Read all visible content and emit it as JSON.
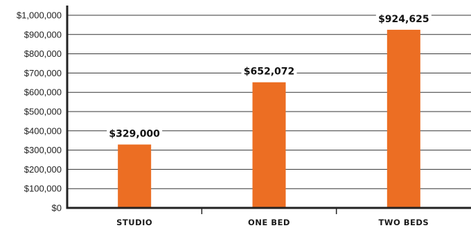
{
  "chart_data": {
    "type": "bar",
    "categories": [
      "STUDIO",
      "ONE BED",
      "TWO BEDS"
    ],
    "values": [
      329000,
      652072,
      924625
    ],
    "data_labels": [
      "$329,000",
      "$652,072",
      "$924,625"
    ],
    "title": "",
    "xlabel": "",
    "ylabel": "",
    "ylim": [
      0,
      1000000
    ],
    "yticks": [
      0,
      100000,
      200000,
      300000,
      400000,
      500000,
      600000,
      700000,
      800000,
      900000,
      1000000
    ],
    "ytick_labels": [
      "$0",
      "$100,000",
      "$200,000",
      "$300,000",
      "$400,000",
      "$500,000",
      "$600,000",
      "$700,000",
      "$800,000",
      "$900,000",
      "$1,000,000"
    ],
    "grid": true,
    "legend": "none",
    "colors": {
      "bar": "#ec6e23",
      "grid": "#333333",
      "axis": "#222222"
    }
  }
}
